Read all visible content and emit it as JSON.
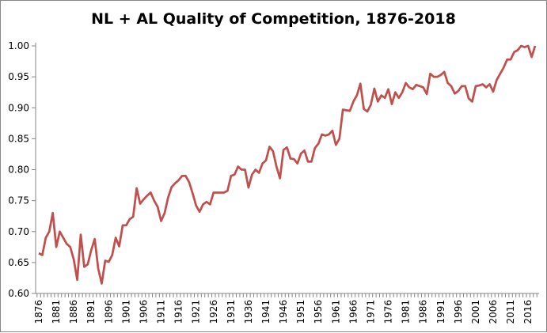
{
  "chart_data": {
    "type": "line",
    "title": "NL + AL Quality of Competition, 1876-2018",
    "xlabel": "",
    "ylabel": "",
    "xlim": [
      1876,
      2018
    ],
    "ylim": [
      0.6,
      1.0
    ],
    "y_ticks": [
      "0.60",
      "0.65",
      "0.70",
      "0.75",
      "0.80",
      "0.85",
      "0.90",
      "0.95",
      "1.00"
    ],
    "x_tick_labels": [
      "1876",
      "1881",
      "1886",
      "1891",
      "1896",
      "1901",
      "1906",
      "1911",
      "1916",
      "1921",
      "1926",
      "1931",
      "1936",
      "1941",
      "1946",
      "1951",
      "1956",
      "1961",
      "1966",
      "1971",
      "1976",
      "1981",
      "1986",
      "1991",
      "1996",
      "2001",
      "2006",
      "2011",
      "2016"
    ],
    "grid": false,
    "legend": "none",
    "line_color": "#C0504D",
    "series": [
      {
        "x_start": 1876,
        "values": [
          0.665,
          0.662,
          0.69,
          0.7,
          0.73,
          0.675,
          0.7,
          0.69,
          0.68,
          0.675,
          0.655,
          0.622,
          0.695,
          0.643,
          0.647,
          0.67,
          0.688,
          0.64,
          0.616,
          0.653,
          0.651,
          0.662,
          0.69,
          0.676,
          0.71,
          0.71,
          0.72,
          0.724,
          0.77,
          0.745,
          0.752,
          0.758,
          0.763,
          0.75,
          0.74,
          0.717,
          0.73,
          0.755,
          0.772,
          0.778,
          0.783,
          0.79,
          0.79,
          0.78,
          0.762,
          0.742,
          0.732,
          0.744,
          0.748,
          0.744,
          0.763,
          0.763,
          0.763,
          0.763,
          0.766,
          0.79,
          0.792,
          0.805,
          0.8,
          0.8,
          0.771,
          0.792,
          0.8,
          0.795,
          0.81,
          0.815,
          0.837,
          0.83,
          0.805,
          0.786,
          0.832,
          0.836,
          0.818,
          0.817,
          0.81,
          0.826,
          0.831,
          0.813,
          0.813,
          0.835,
          0.842,
          0.857,
          0.855,
          0.857,
          0.863,
          0.84,
          0.85,
          0.897,
          0.896,
          0.895,
          0.91,
          0.92,
          0.939,
          0.898,
          0.894,
          0.905,
          0.931,
          0.91,
          0.92,
          0.916,
          0.93,
          0.906,
          0.925,
          0.916,
          0.925,
          0.94,
          0.933,
          0.93,
          0.937,
          0.935,
          0.933,
          0.922,
          0.955,
          0.95,
          0.95,
          0.953,
          0.958,
          0.94,
          0.935,
          0.923,
          0.927,
          0.935,
          0.935,
          0.915,
          0.91,
          0.935,
          0.936,
          0.938,
          0.933,
          0.938,
          0.926,
          0.945,
          0.955,
          0.965,
          0.978,
          0.978,
          0.99,
          0.993,
          1.0,
          0.998,
          1.0,
          0.982,
          1.0
        ]
      }
    ]
  }
}
